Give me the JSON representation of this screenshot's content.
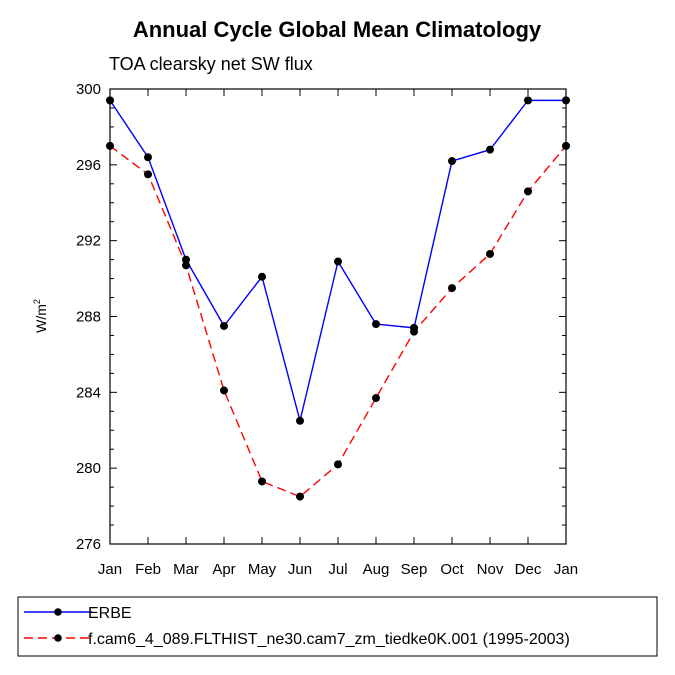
{
  "chart_data": {
    "type": "line",
    "title": "Annual Cycle Global Mean Climatology",
    "subtitle": "TOA clearsky net SW flux",
    "ylabel_base": "W/m",
    "ylabel_sup": "2",
    "xlabel": "",
    "categories": [
      "Jan",
      "Feb",
      "Mar",
      "Apr",
      "May",
      "Jun",
      "Jul",
      "Aug",
      "Sep",
      "Oct",
      "Nov",
      "Dec",
      "Jan"
    ],
    "ylim": [
      276,
      300
    ],
    "yticks": [
      276,
      280,
      284,
      288,
      292,
      296,
      300
    ],
    "series": [
      {
        "name": "ERBE",
        "color": "#0000ff",
        "dash": "solid",
        "values": [
          299.4,
          296.4,
          291.0,
          287.5,
          290.1,
          282.5,
          290.9,
          287.6,
          287.4,
          296.2,
          296.8,
          299.4,
          299.4
        ]
      },
      {
        "name": "f.cam6_4_089.FLTHIST_ne30.cam7_zm_tiedke0K.001 (1995-2003)",
        "color": "#ff0000",
        "dash": "dashed",
        "values": [
          297.0,
          295.5,
          290.7,
          284.1,
          279.3,
          278.5,
          280.2,
          283.7,
          287.2,
          289.5,
          291.3,
          294.6,
          297.0
        ]
      }
    ],
    "legend_position": "bottom"
  }
}
